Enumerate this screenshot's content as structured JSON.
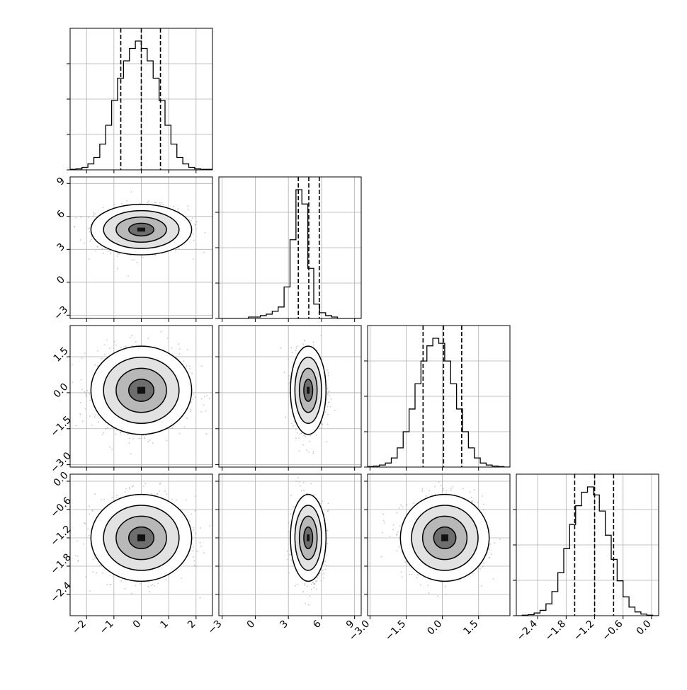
{
  "colors": {
    "ink": "#000000",
    "grid": "#b0b0b0",
    "scatter": "#9a9a9a",
    "background": "#ffffff"
  },
  "chart_data": {
    "type": "corner",
    "n_params": 4,
    "grid": true,
    "axes": [
      {
        "range": [
          -2.6,
          2.6
        ],
        "ticks": [
          -2,
          -1,
          0,
          1,
          2
        ],
        "tick_labels": [
          "−2",
          "−1",
          "0",
          "1",
          "2"
        ]
      },
      {
        "range": [
          -3.3,
          9.6
        ],
        "ticks": [
          -3,
          0,
          3,
          6,
          9
        ],
        "tick_labels": [
          "−3",
          "0",
          "3",
          "6",
          "9"
        ]
      },
      {
        "range": [
          -3.1,
          2.8
        ],
        "ticks": [
          -3.0,
          -1.5,
          0.0,
          1.5
        ],
        "tick_labels": [
          "−3.0",
          "−1.5",
          "0.0",
          "1.5"
        ]
      },
      {
        "range": [
          -2.85,
          0.15
        ],
        "ticks": [
          -2.4,
          -1.8,
          -1.2,
          -0.6,
          0.0
        ],
        "tick_labels": [
          "−2.4",
          "−1.8",
          "−1.2",
          "−0.6",
          "0.0"
        ]
      }
    ],
    "marginals": [
      {
        "quantiles": [
          -0.75,
          0.0,
          0.7
        ],
        "bins": [
          -2.6,
          2.6
        ],
        "counts": [
          1,
          2,
          5,
          12,
          25,
          52,
          90,
          140,
          185,
          220,
          245,
          260,
          245,
          220,
          185,
          140,
          90,
          52,
          25,
          12,
          5,
          2,
          1,
          1
        ]
      },
      {
        "quantiles": [
          3.9,
          4.85,
          5.8
        ],
        "bins": [
          -3.3,
          9.6
        ],
        "counts": [
          0,
          0,
          0,
          0,
          0,
          1,
          1,
          2,
          3,
          5,
          8,
          22,
          55,
          90,
          80,
          35,
          10,
          4,
          2,
          1,
          0,
          0,
          0,
          0
        ]
      },
      {
        "quantiles": [
          -0.8,
          0.05,
          0.8
        ],
        "bins": [
          -3.1,
          2.8
        ],
        "counts": [
          1,
          2,
          4,
          8,
          18,
          38,
          70,
          115,
          165,
          210,
          240,
          255,
          245,
          210,
          165,
          115,
          70,
          38,
          18,
          8,
          4,
          2,
          1,
          0
        ]
      },
      {
        "quantiles": [
          -1.62,
          -1.2,
          -0.8
        ],
        "bins": [
          -2.85,
          0.15
        ],
        "counts": [
          0,
          1,
          2,
          5,
          10,
          22,
          45,
          80,
          125,
          170,
          205,
          230,
          240,
          225,
          195,
          150,
          105,
          65,
          35,
          16,
          7,
          3,
          1,
          0
        ]
      }
    ],
    "joints": [
      {
        "row": 1,
        "col": 0,
        "center": [
          0.0,
          4.8
        ],
        "spread": [
          0.8,
          1.0
        ]
      },
      {
        "row": 2,
        "col": 0,
        "center": [
          0.0,
          0.1
        ],
        "spread": [
          0.8,
          0.8
        ]
      },
      {
        "row": 2,
        "col": 1,
        "center": [
          4.8,
          0.1
        ],
        "spread": [
          0.7,
          0.8
        ]
      },
      {
        "row": 3,
        "col": 0,
        "center": [
          0.0,
          -1.2
        ],
        "spread": [
          0.8,
          0.4
        ]
      },
      {
        "row": 3,
        "col": 1,
        "center": [
          4.8,
          -1.2
        ],
        "spread": [
          0.7,
          0.4
        ]
      },
      {
        "row": 3,
        "col": 2,
        "center": [
          0.1,
          -1.2
        ],
        "spread": [
          0.8,
          0.4
        ]
      }
    ],
    "contour_levels": [
      0.5,
      1.0,
      1.5,
      2.0
    ]
  }
}
